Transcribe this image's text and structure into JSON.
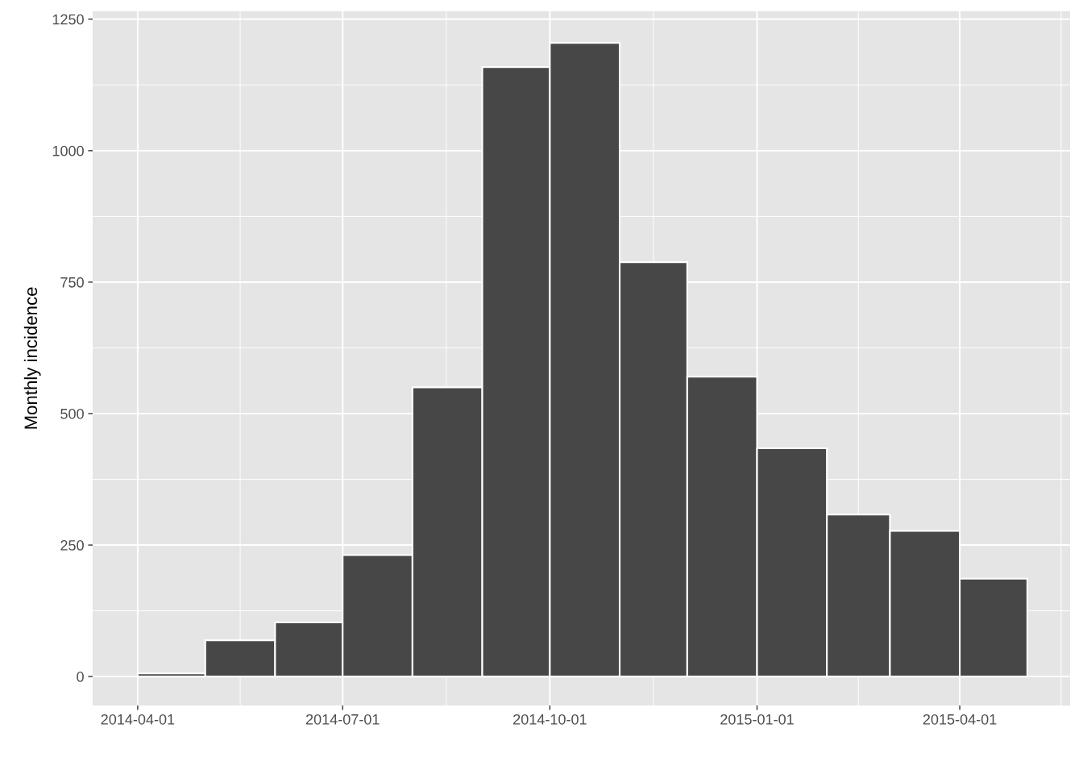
{
  "chart_data": {
    "type": "histogram",
    "ylabel": "Monthly incidence",
    "bins": [
      "2014-04-01",
      "2014-05-01",
      "2014-06-01",
      "2014-07-01",
      "2014-08-01",
      "2014-09-01",
      "2014-10-01",
      "2014-11-01",
      "2014-12-01",
      "2015-01-01",
      "2015-02-01",
      "2015-03-01",
      "2015-04-01",
      "2015-05-01"
    ],
    "values": [
      6,
      69,
      103,
      231,
      550,
      1159,
      1205,
      788,
      570,
      434,
      308,
      277,
      186
    ],
    "color": "#474747",
    "xlim": [
      "2014-03-12",
      "2015-05-20"
    ],
    "xticks": [
      "2014-04-01",
      "2014-07-01",
      "2014-10-01",
      "2015-01-01",
      "2015-04-01"
    ],
    "ylim": [
      -55,
      1265
    ],
    "yticks": [
      0,
      250,
      500,
      750,
      1000,
      1250
    ],
    "grid": true
  }
}
